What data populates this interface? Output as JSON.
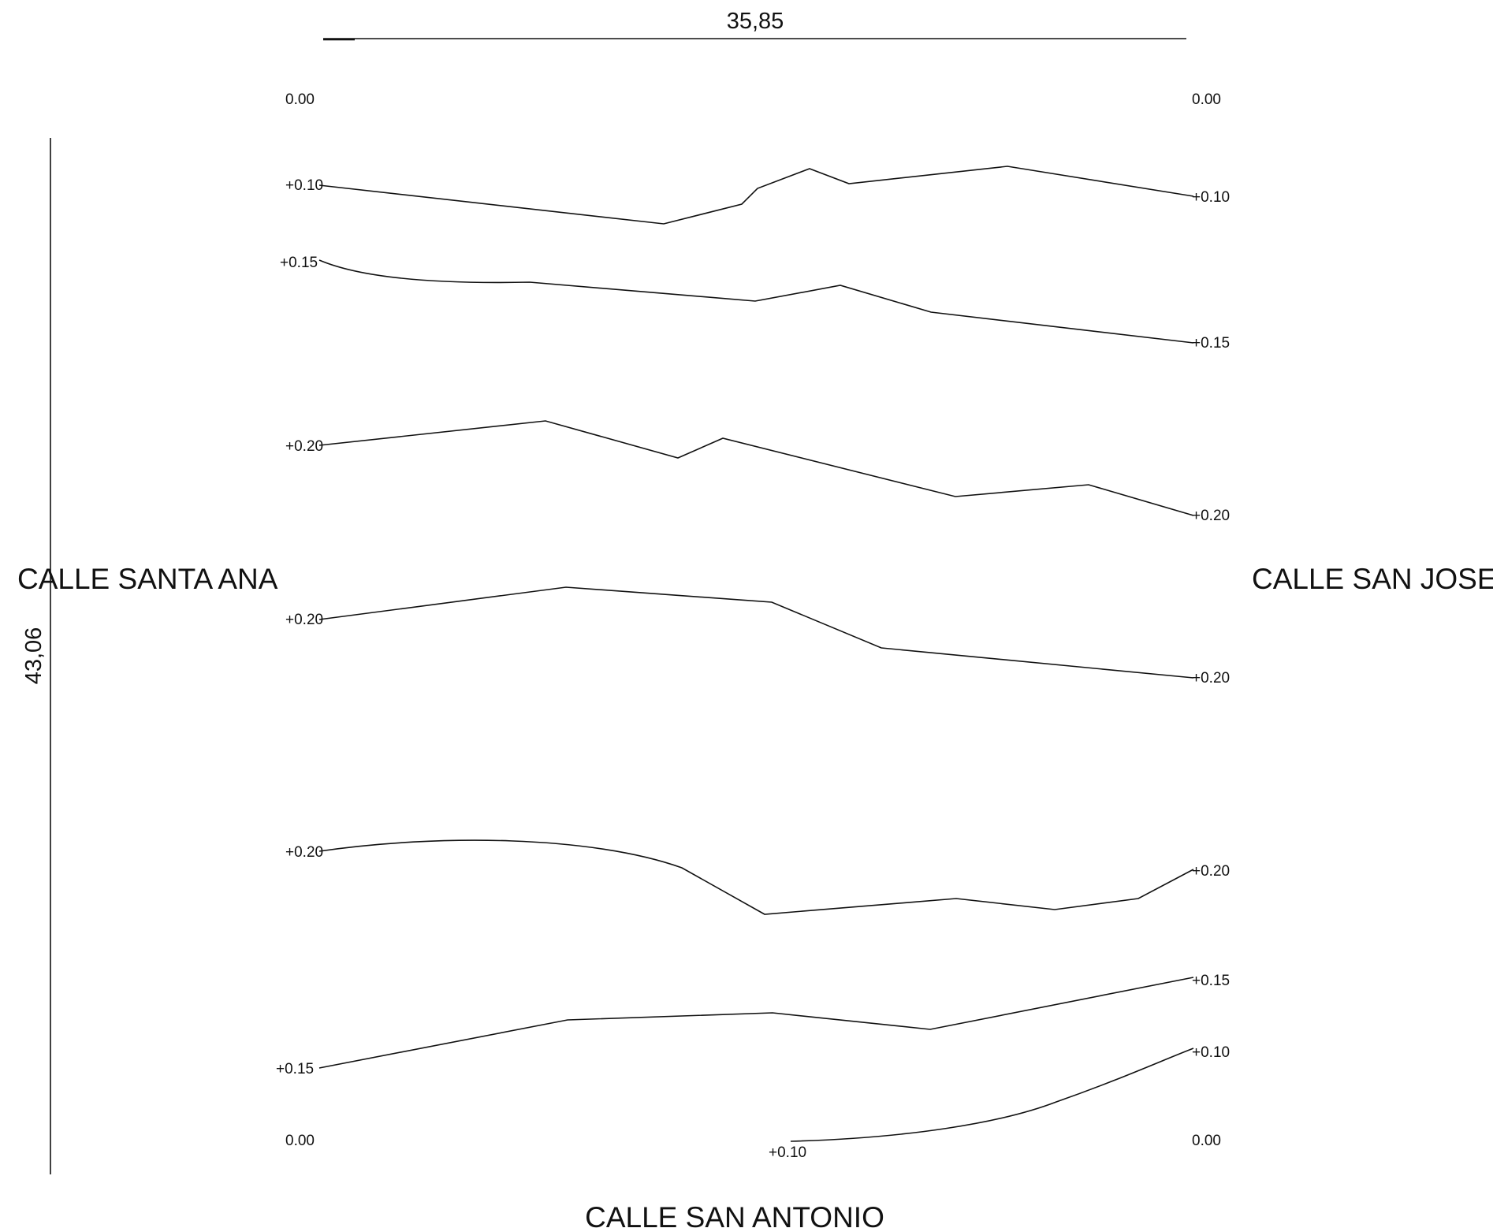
{
  "streets": {
    "left": "CALLE SANTA ANA",
    "right": "CALLE SAN JOSE",
    "bottom": "CALLE SAN ANTONIO"
  },
  "dimensions": {
    "width": "35,85",
    "height": "43,06"
  },
  "corners": {
    "top_left": "0.00",
    "top_right": "0.00",
    "bottom_left": "0.00",
    "bottom_right": "0.00"
  },
  "contours": [
    {
      "left_label": "+0.10",
      "right_label": "+0.10"
    },
    {
      "left_label": "+0.15",
      "right_label": "+0.15"
    },
    {
      "left_label": "+0.20",
      "right_label": "+0.20"
    },
    {
      "left_label": "+0.20",
      "right_label": "+0.20"
    },
    {
      "left_label": "+0.20",
      "right_label": "+0.20"
    },
    {
      "left_label": "+0.15",
      "right_label": "+0.15"
    },
    {
      "left_label": "+0.10",
      "right_label": "+0.10"
    }
  ],
  "colors": {
    "ink": "#111111",
    "background": "#ffffff"
  }
}
